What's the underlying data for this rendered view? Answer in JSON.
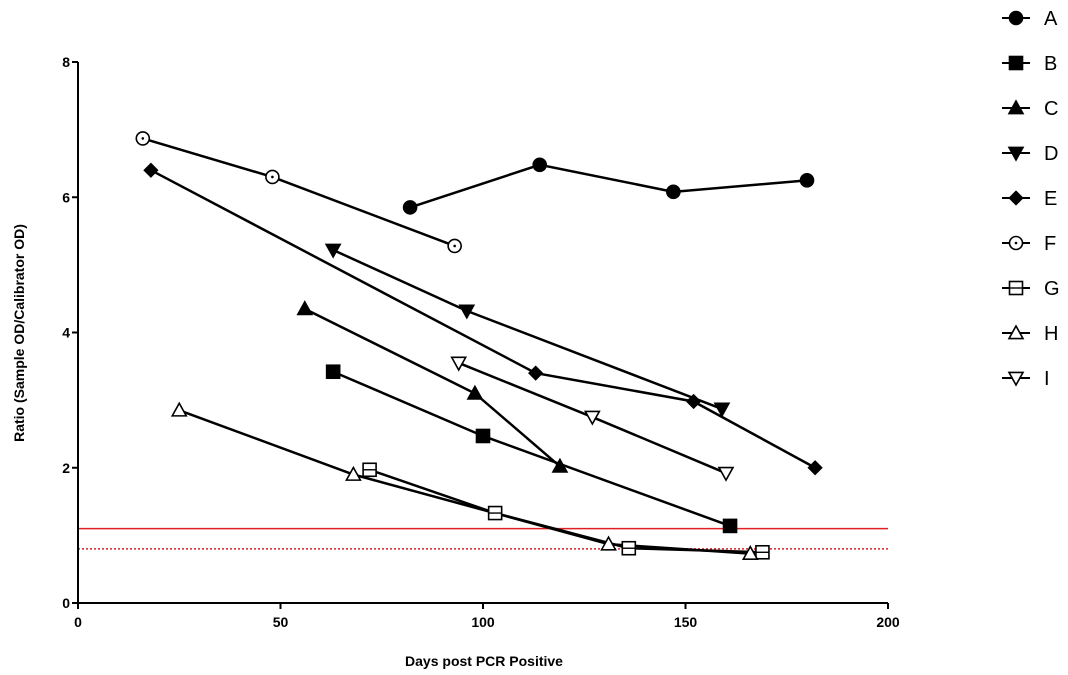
{
  "chart_data": {
    "type": "line",
    "title": "",
    "xlabel": "Days post PCR Positive",
    "ylabel": "Ratio (Sample OD/Calibrator OD)",
    "xlim": [
      0,
      200
    ],
    "ylim": [
      0,
      8
    ],
    "xticks": [
      0,
      50,
      100,
      150,
      200
    ],
    "yticks": [
      0,
      2,
      4,
      6,
      8
    ],
    "grid": false,
    "legend_position": "right",
    "reference_lines": [
      {
        "y": 1.1,
        "color": "#e02020",
        "style": "solid"
      },
      {
        "y": 0.8,
        "color": "#e02020",
        "style": "dotted"
      }
    ],
    "series": [
      {
        "name": "A",
        "marker": "filled-circle",
        "points": [
          [
            82,
            5.85
          ],
          [
            114,
            6.48
          ],
          [
            147,
            6.08
          ],
          [
            180,
            6.25
          ]
        ]
      },
      {
        "name": "B",
        "marker": "filled-square",
        "points": [
          [
            63,
            3.42
          ],
          [
            100,
            2.47
          ],
          [
            161,
            1.14
          ]
        ]
      },
      {
        "name": "C",
        "marker": "filled-triangle-up",
        "points": [
          [
            56,
            4.35
          ],
          [
            98,
            3.1
          ],
          [
            119,
            2.02
          ]
        ]
      },
      {
        "name": "D",
        "marker": "filled-triangle-down",
        "points": [
          [
            63,
            5.22
          ],
          [
            96,
            4.32
          ],
          [
            159,
            2.87
          ]
        ]
      },
      {
        "name": "E",
        "marker": "filled-diamond",
        "points": [
          [
            18,
            6.4
          ],
          [
            113,
            3.4
          ],
          [
            152,
            2.98
          ],
          [
            182,
            2.0
          ]
        ]
      },
      {
        "name": "F",
        "marker": "open-circle",
        "points": [
          [
            16,
            6.87
          ],
          [
            48,
            6.3
          ],
          [
            93,
            5.28
          ]
        ]
      },
      {
        "name": "G",
        "marker": "open-square",
        "points": [
          [
            72,
            1.97
          ],
          [
            103,
            1.33
          ],
          [
            136,
            0.81
          ],
          [
            169,
            0.75
          ]
        ]
      },
      {
        "name": "H",
        "marker": "open-triangle-up",
        "points": [
          [
            25,
            2.85
          ],
          [
            68,
            1.9
          ],
          [
            131,
            0.87
          ],
          [
            166,
            0.73
          ]
        ]
      },
      {
        "name": "I",
        "marker": "open-triangle-down",
        "points": [
          [
            94,
            3.55
          ],
          [
            127,
            2.75
          ],
          [
            160,
            1.92
          ]
        ]
      }
    ]
  }
}
